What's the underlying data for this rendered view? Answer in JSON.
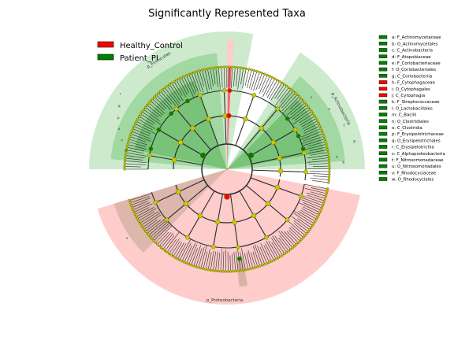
{
  "chart_data": {
    "type": "cladogram",
    "title": "Significantly Represented Taxa",
    "series": [
      {
        "name": "Healthy_Control",
        "color": "#ff0000"
      },
      {
        "name": "Patient_PI",
        "color": "#008000"
      }
    ],
    "taxa": [
      {
        "key": "a",
        "name": "F_Actinomycetaceae",
        "group": "Patient_PI"
      },
      {
        "key": "b",
        "name": "O_Actinomycetales",
        "group": "Patient_PI"
      },
      {
        "key": "c",
        "name": "C_Actinobacteria",
        "group": "Patient_PI"
      },
      {
        "key": "d",
        "name": "F_Atopobiaceae",
        "group": "Patient_PI"
      },
      {
        "key": "e",
        "name": "F_Coriobacteriaceae",
        "group": "Patient_PI"
      },
      {
        "key": "f",
        "name": "O_Coriobacteriales",
        "group": "Patient_PI"
      },
      {
        "key": "g",
        "name": "C_Coriobacteriia",
        "group": "Patient_PI"
      },
      {
        "key": "h",
        "name": "F_Cytophagaceae",
        "group": "Healthy_Control"
      },
      {
        "key": "i",
        "name": "O_Cytophagales",
        "group": "Healthy_Control"
      },
      {
        "key": "j",
        "name": "C_Cytophagia",
        "group": "Healthy_Control"
      },
      {
        "key": "k",
        "name": "F_Streptococcaceae",
        "group": "Patient_PI"
      },
      {
        "key": "l",
        "name": "O_Lactobacillales",
        "group": "Patient_PI"
      },
      {
        "key": "m",
        "name": "C_Bacilli",
        "group": "Patient_PI"
      },
      {
        "key": "n",
        "name": "O_Clostridiales",
        "group": "Patient_PI"
      },
      {
        "key": "o",
        "name": "C_Clostridia",
        "group": "Patient_PI"
      },
      {
        "key": "p",
        "name": "F_Erysipelotrichaceae",
        "group": "Patient_PI"
      },
      {
        "key": "q",
        "name": "O_Erysipelotrichales",
        "group": "Patient_PI"
      },
      {
        "key": "r",
        "name": "C_Erysipelotrichia",
        "group": "Patient_PI"
      },
      {
        "key": "s",
        "name": "C_Alphaproteobacteria",
        "group": "Patient_PI"
      },
      {
        "key": "t",
        "name": "F_Nitrosomonadaceae",
        "group": "Patient_PI"
      },
      {
        "key": "u",
        "name": "O_Nitrosomonadales",
        "group": "Patient_PI"
      },
      {
        "key": "v",
        "name": "F_Rhodocyclaceae",
        "group": "Patient_PI"
      },
      {
        "key": "w",
        "name": "O_Rhodocyclales",
        "group": "Patient_PI"
      }
    ],
    "clades": [
      {
        "label": "p_Firmicutes",
        "group": "Patient_PI"
      },
      {
        "label": "p_Actinobacteria",
        "group": "Patient_PI"
      },
      {
        "label": "p_Proteobacteria",
        "group": "Healthy_Control"
      }
    ],
    "clade_letters": [
      "m",
      "n",
      "o",
      "p",
      "q",
      "r",
      "c",
      "e",
      "f",
      "g",
      "a",
      "b",
      "s"
    ]
  },
  "colors": {
    "control_fill": "#ffcccc",
    "patient_fill": "#6fc46f",
    "patient_dark": "#2e9e2e",
    "branch": "#2a2a2a",
    "node": "#c8c800",
    "node_stroke": "#707000",
    "tan": "#c8a896"
  }
}
